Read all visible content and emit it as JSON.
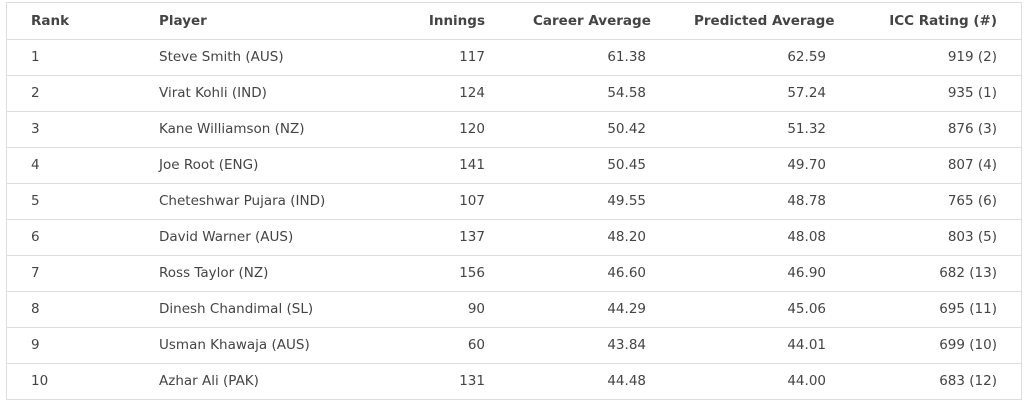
{
  "table": {
    "headers": {
      "rank": "Rank",
      "player": "Player",
      "innings": "Innings",
      "career": "Career Average",
      "predicted": "Predicted Average",
      "icc": "ICC Rating (#)"
    },
    "rows": [
      {
        "rank": "1",
        "player": "Steve Smith (AUS)",
        "innings": "117",
        "career": "61.38",
        "predicted": "62.59",
        "icc": "919 (2)"
      },
      {
        "rank": "2",
        "player": "Virat Kohli (IND)",
        "innings": "124",
        "career": "54.58",
        "predicted": "57.24",
        "icc": "935 (1)"
      },
      {
        "rank": "3",
        "player": "Kane Williamson (NZ)",
        "innings": "120",
        "career": "50.42",
        "predicted": "51.32",
        "icc": "876 (3)"
      },
      {
        "rank": "4",
        "player": "Joe Root (ENG)",
        "innings": "141",
        "career": "50.45",
        "predicted": "49.70",
        "icc": "807 (4)"
      },
      {
        "rank": "5",
        "player": "Cheteshwar Pujara (IND)",
        "innings": "107",
        "career": "49.55",
        "predicted": "48.78",
        "icc": "765 (6)"
      },
      {
        "rank": "6",
        "player": "David Warner (AUS)",
        "innings": "137",
        "career": "48.20",
        "predicted": "48.08",
        "icc": "803 (5)"
      },
      {
        "rank": "7",
        "player": "Ross Taylor (NZ)",
        "innings": "156",
        "career": "46.60",
        "predicted": "46.90",
        "icc": "682 (13)"
      },
      {
        "rank": "8",
        "player": "Dinesh Chandimal (SL)",
        "innings": "90",
        "career": "44.29",
        "predicted": "45.06",
        "icc": "695 (11)"
      },
      {
        "rank": "9",
        "player": "Usman Khawaja (AUS)",
        "innings": "60",
        "career": "43.84",
        "predicted": "44.01",
        "icc": "699 (10)"
      },
      {
        "rank": "10",
        "player": "Azhar Ali (PAK)",
        "innings": "131",
        "career": "44.48",
        "predicted": "44.00",
        "icc": "683 (12)"
      }
    ]
  }
}
